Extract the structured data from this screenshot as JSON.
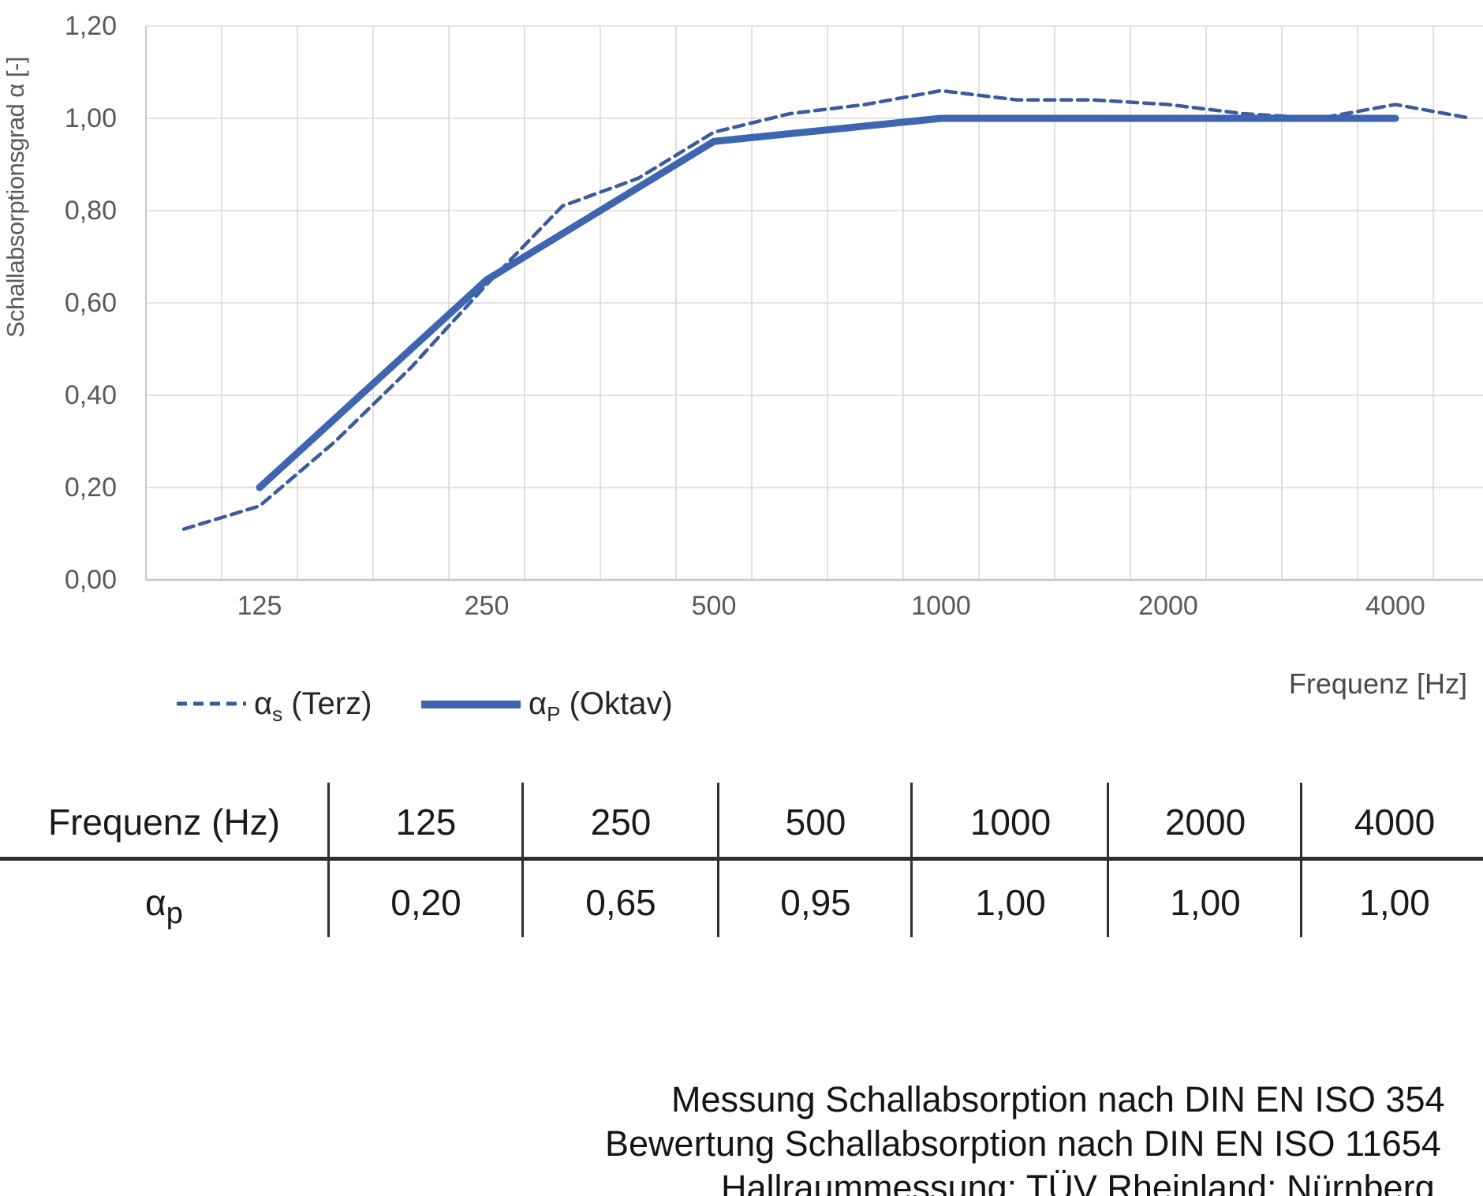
{
  "chart": {
    "y_axis_title": "Schallabsorptionsgrad α [-]",
    "x_axis_title": "Frequenz [Hz]",
    "y_ticks": [
      "1,20",
      "1,00",
      "0,80",
      "0,60",
      "0,40",
      "0,20",
      "0,00"
    ],
    "x_ticks": [
      {
        "label": "125",
        "band": 125
      },
      {
        "label": "250",
        "band": 250
      },
      {
        "label": "500",
        "band": 500
      },
      {
        "label": "1000",
        "band": 1000
      },
      {
        "label": "2000",
        "band": 2000
      },
      {
        "label": "4000",
        "band": 4000
      }
    ],
    "legend": [
      {
        "base": "α",
        "sub": "s",
        "rest": " (Terz)",
        "style": "dashed"
      },
      {
        "base": "α",
        "sub": "P",
        "rest": " (Oktav)",
        "style": "solid"
      }
    ],
    "colors": {
      "solid_series": "#3d65b0",
      "dashed_series": "#3a5b9e",
      "grid": "#d9d9d9",
      "axis_frame": "#c7c7c7",
      "axis_text": "#595959"
    }
  },
  "chart_data": {
    "type": "line",
    "categories": [
      100,
      125,
      160,
      200,
      250,
      315,
      400,
      500,
      630,
      800,
      1000,
      1250,
      1600,
      2000,
      2500,
      3150,
      4000,
      5000
    ],
    "series": [
      {
        "name": "αs (Terz)",
        "style": "dashed",
        "x": [
          100,
          125,
          160,
          200,
          250,
          315,
          400,
          500,
          630,
          800,
          1000,
          1250,
          1600,
          2000,
          2500,
          3150,
          4000,
          5000
        ],
        "values": [
          0.11,
          0.16,
          0.3,
          0.46,
          0.64,
          0.81,
          0.87,
          0.97,
          1.01,
          1.03,
          1.06,
          1.04,
          1.04,
          1.03,
          1.01,
          1.0,
          1.03,
          1.0
        ]
      },
      {
        "name": "αP (Oktav)",
        "style": "solid",
        "x": [
          125,
          250,
          500,
          1000,
          2000,
          4000
        ],
        "values": [
          0.2,
          0.65,
          0.95,
          1.0,
          1.0,
          1.0
        ]
      }
    ],
    "title": "",
    "xlabel": "Frequenz [Hz]",
    "ylabel": "Schallabsorptionsgrad α [-]",
    "ylim": [
      0,
      1.2
    ],
    "y_tick_step": 0.2,
    "grid": true,
    "legend_position": "bottom-left",
    "x_scale": "log-third-octave"
  },
  "table": {
    "header_label": "Frequenz (Hz)",
    "columns": [
      "125",
      "250",
      "500",
      "1000",
      "2000",
      "4000"
    ],
    "row_label_base": "α",
    "row_label_sub": "p",
    "values": [
      "0,20",
      "0,65",
      "0,95",
      "1,00",
      "1,00",
      "1,00"
    ]
  },
  "footer": {
    "lines": [
      "Messung Schallabsorption nach DIN EN ISO 354",
      "Bewertung Schallabsorption nach DIN EN ISO 11654",
      "Hallraummessung: TÜV Rheinland; Nürnberg"
    ]
  }
}
